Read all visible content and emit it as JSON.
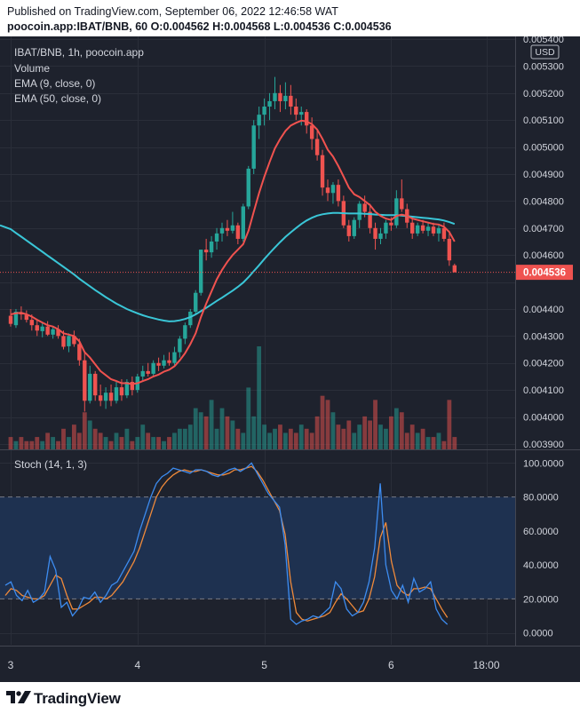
{
  "header": {
    "line1": "Published on TradingView.com, September 06, 2022 12:46:58 WAT",
    "line2": "poocoin.app:IBAT/BNB, 60  O:0.004562  H:0.004568  L:0.004536  C:0.004536"
  },
  "legend": {
    "title": "IBAT/BNB, 1h, poocoin.app",
    "volume": "Volume",
    "ema9": "EMA (9, close, 0)",
    "ema50": "EMA (50, close, 0)",
    "stoch": "Stoch (14, 1, 3)"
  },
  "currency": "USD",
  "last_price_label": "0.004536",
  "footer": {
    "brand": "TradingView"
  },
  "colors": {
    "bull": "#26a69a",
    "bear": "#ef5350",
    "ema9": "#f0524f",
    "ema50": "#3ac6d7",
    "stoch_k": "#3d8cf0",
    "stoch_d": "#f08a3a",
    "background": "#1e222d"
  },
  "chart_data": [
    {
      "type": "candlestick",
      "title": "IBAT/BNB, 1h, poocoin.app",
      "ylabel": "USD",
      "ylim": [
        0.00388,
        0.00541
      ],
      "y_ticks": [
        "0.005400",
        "0.005300",
        "0.005200",
        "0.005100",
        "0.005000",
        "0.004900",
        "0.004800",
        "0.004700",
        "0.004600",
        "0.004500",
        "0.004400",
        "0.004300",
        "0.004200",
        "0.004100",
        "0.004000",
        "0.003900"
      ],
      "x_ticks": [
        "3",
        "4",
        "5",
        "6",
        "18:00"
      ],
      "x_tick_positions": [
        0,
        24,
        48,
        72,
        90
      ],
      "last_close": 0.004536,
      "candles": [
        {
          "o": 0.004375,
          "h": 0.0044,
          "l": 0.004335,
          "c": 0.004345
        },
        {
          "o": 0.00434,
          "h": 0.0044,
          "l": 0.00433,
          "c": 0.00439
        },
        {
          "o": 0.004385,
          "h": 0.00441,
          "l": 0.00436,
          "c": 0.00438
        },
        {
          "o": 0.004378,
          "h": 0.004395,
          "l": 0.00435,
          "c": 0.00436
        },
        {
          "o": 0.00436,
          "h": 0.00438,
          "l": 0.00432,
          "c": 0.00434
        },
        {
          "o": 0.00434,
          "h": 0.00436,
          "l": 0.0043,
          "c": 0.00432
        },
        {
          "o": 0.004318,
          "h": 0.00435,
          "l": 0.004295,
          "c": 0.004335
        },
        {
          "o": 0.004335,
          "h": 0.004355,
          "l": 0.0043,
          "c": 0.004305
        },
        {
          "o": 0.004305,
          "h": 0.004335,
          "l": 0.00429,
          "c": 0.004325
        },
        {
          "o": 0.004325,
          "h": 0.00434,
          "l": 0.00429,
          "c": 0.0043
        },
        {
          "o": 0.0043,
          "h": 0.00432,
          "l": 0.00425,
          "c": 0.00426
        },
        {
          "o": 0.004262,
          "h": 0.00431,
          "l": 0.00424,
          "c": 0.0043
        },
        {
          "o": 0.0043,
          "h": 0.00432,
          "l": 0.00426,
          "c": 0.00427
        },
        {
          "o": 0.00427,
          "h": 0.00429,
          "l": 0.00419,
          "c": 0.00421
        },
        {
          "o": 0.00421,
          "h": 0.00424,
          "l": 0.00402,
          "c": 0.00406
        },
        {
          "o": 0.00406,
          "h": 0.00419,
          "l": 0.00405,
          "c": 0.00416
        },
        {
          "o": 0.00416,
          "h": 0.00417,
          "l": 0.00406,
          "c": 0.00408
        },
        {
          "o": 0.00408,
          "h": 0.00412,
          "l": 0.00404,
          "c": 0.00406
        },
        {
          "o": 0.00406,
          "h": 0.00411,
          "l": 0.00403,
          "c": 0.00409
        },
        {
          "o": 0.00409,
          "h": 0.00412,
          "l": 0.00404,
          "c": 0.00406
        },
        {
          "o": 0.00406,
          "h": 0.00413,
          "l": 0.00405,
          "c": 0.00411
        },
        {
          "o": 0.00411,
          "h": 0.00414,
          "l": 0.00406,
          "c": 0.00408
        },
        {
          "o": 0.00408,
          "h": 0.00414,
          "l": 0.00407,
          "c": 0.00413
        },
        {
          "o": 0.00413,
          "h": 0.00415,
          "l": 0.00408,
          "c": 0.0041
        },
        {
          "o": 0.0041,
          "h": 0.00416,
          "l": 0.00409,
          "c": 0.00415
        },
        {
          "o": 0.00415,
          "h": 0.00419,
          "l": 0.00413,
          "c": 0.00417
        },
        {
          "o": 0.00417,
          "h": 0.0042,
          "l": 0.00415,
          "c": 0.00416
        },
        {
          "o": 0.00416,
          "h": 0.00421,
          "l": 0.00415,
          "c": 0.0042
        },
        {
          "o": 0.0042,
          "h": 0.00422,
          "l": 0.00417,
          "c": 0.00419
        },
        {
          "o": 0.00419,
          "h": 0.00423,
          "l": 0.00418,
          "c": 0.00421
        },
        {
          "o": 0.00421,
          "h": 0.00424,
          "l": 0.00419,
          "c": 0.0042
        },
        {
          "o": 0.0042,
          "h": 0.00426,
          "l": 0.00419,
          "c": 0.00424
        },
        {
          "o": 0.00424,
          "h": 0.0043,
          "l": 0.00422,
          "c": 0.00429
        },
        {
          "o": 0.00429,
          "h": 0.00435,
          "l": 0.00427,
          "c": 0.00434
        },
        {
          "o": 0.00434,
          "h": 0.0044,
          "l": 0.00433,
          "c": 0.00439
        },
        {
          "o": 0.00439,
          "h": 0.00447,
          "l": 0.00438,
          "c": 0.00446
        },
        {
          "o": 0.00446,
          "h": 0.00462,
          "l": 0.00445,
          "c": 0.00462
        },
        {
          "o": 0.00462,
          "h": 0.00466,
          "l": 0.00458,
          "c": 0.00461
        },
        {
          "o": 0.00461,
          "h": 0.00467,
          "l": 0.00459,
          "c": 0.00465
        },
        {
          "o": 0.00465,
          "h": 0.0047,
          "l": 0.00462,
          "c": 0.00468
        },
        {
          "o": 0.00468,
          "h": 0.00472,
          "l": 0.00465,
          "c": 0.0047
        },
        {
          "o": 0.0047,
          "h": 0.00473,
          "l": 0.00467,
          "c": 0.00469
        },
        {
          "o": 0.00469,
          "h": 0.00476,
          "l": 0.00468,
          "c": 0.00471
        },
        {
          "o": 0.00471,
          "h": 0.00472,
          "l": 0.00464,
          "c": 0.00466
        },
        {
          "o": 0.00466,
          "h": 0.00479,
          "l": 0.00465,
          "c": 0.00478
        },
        {
          "o": 0.00478,
          "h": 0.00493,
          "l": 0.00477,
          "c": 0.00492
        },
        {
          "o": 0.00492,
          "h": 0.0051,
          "l": 0.0049,
          "c": 0.00508
        },
        {
          "o": 0.00508,
          "h": 0.00515,
          "l": 0.00503,
          "c": 0.00512
        },
        {
          "o": 0.00512,
          "h": 0.00518,
          "l": 0.00508,
          "c": 0.00515
        },
        {
          "o": 0.00515,
          "h": 0.0052,
          "l": 0.0051,
          "c": 0.00517
        },
        {
          "o": 0.00517,
          "h": 0.00526,
          "l": 0.00514,
          "c": 0.0052
        },
        {
          "o": 0.0052,
          "h": 0.00523,
          "l": 0.00513,
          "c": 0.00517
        },
        {
          "o": 0.00517,
          "h": 0.00524,
          "l": 0.00514,
          "c": 0.00519
        },
        {
          "o": 0.00519,
          "h": 0.00523,
          "l": 0.00512,
          "c": 0.00515
        },
        {
          "o": 0.00515,
          "h": 0.00518,
          "l": 0.0051,
          "c": 0.00512
        },
        {
          "o": 0.00512,
          "h": 0.00515,
          "l": 0.00508,
          "c": 0.00513
        },
        {
          "o": 0.00513,
          "h": 0.00514,
          "l": 0.00505,
          "c": 0.00508
        },
        {
          "o": 0.00508,
          "h": 0.00511,
          "l": 0.00499,
          "c": 0.00503
        },
        {
          "o": 0.00503,
          "h": 0.00506,
          "l": 0.00495,
          "c": 0.00497
        },
        {
          "o": 0.00497,
          "h": 0.00499,
          "l": 0.00482,
          "c": 0.00485
        },
        {
          "o": 0.00485,
          "h": 0.00488,
          "l": 0.0048,
          "c": 0.00483
        },
        {
          "o": 0.00483,
          "h": 0.00487,
          "l": 0.00479,
          "c": 0.00486
        },
        {
          "o": 0.00486,
          "h": 0.00488,
          "l": 0.00478,
          "c": 0.0048
        },
        {
          "o": 0.0048,
          "h": 0.00482,
          "l": 0.0047,
          "c": 0.00471
        },
        {
          "o": 0.00471,
          "h": 0.00473,
          "l": 0.00465,
          "c": 0.00467
        },
        {
          "o": 0.00467,
          "h": 0.00474,
          "l": 0.00466,
          "c": 0.00473
        },
        {
          "o": 0.00473,
          "h": 0.0048,
          "l": 0.0047,
          "c": 0.00479
        },
        {
          "o": 0.00479,
          "h": 0.00482,
          "l": 0.00474,
          "c": 0.00476
        },
        {
          "o": 0.00476,
          "h": 0.00479,
          "l": 0.00468,
          "c": 0.0047
        },
        {
          "o": 0.0047,
          "h": 0.00472,
          "l": 0.00462,
          "c": 0.00466
        },
        {
          "o": 0.00466,
          "h": 0.0047,
          "l": 0.00464,
          "c": 0.00468
        },
        {
          "o": 0.00468,
          "h": 0.00473,
          "l": 0.00466,
          "c": 0.00472
        },
        {
          "o": 0.00472,
          "h": 0.00474,
          "l": 0.00469,
          "c": 0.00471
        },
        {
          "o": 0.00471,
          "h": 0.00484,
          "l": 0.0047,
          "c": 0.00481
        },
        {
          "o": 0.00481,
          "h": 0.00488,
          "l": 0.00476,
          "c": 0.00477
        },
        {
          "o": 0.00477,
          "h": 0.00479,
          "l": 0.0047,
          "c": 0.00472
        },
        {
          "o": 0.00472,
          "h": 0.00474,
          "l": 0.00466,
          "c": 0.00468
        },
        {
          "o": 0.00468,
          "h": 0.00472,
          "l": 0.00467,
          "c": 0.00471
        },
        {
          "o": 0.00471,
          "h": 0.00473,
          "l": 0.00468,
          "c": 0.00469
        },
        {
          "o": 0.00469,
          "h": 0.00472,
          "l": 0.00467,
          "c": 0.004705
        },
        {
          "o": 0.004705,
          "h": 0.00472,
          "l": 0.00467,
          "c": 0.00468
        },
        {
          "o": 0.00468,
          "h": 0.00471,
          "l": 0.00465,
          "c": 0.0047
        },
        {
          "o": 0.0047,
          "h": 0.00472,
          "l": 0.00465,
          "c": 0.00466
        },
        {
          "o": 0.00466,
          "h": 0.00469,
          "l": 0.00456,
          "c": 0.00458
        },
        {
          "o": 0.004562,
          "h": 0.004568,
          "l": 0.004536,
          "c": 0.004536
        }
      ],
      "volume": [
        3,
        2,
        3,
        2,
        2,
        3,
        2,
        4,
        3,
        2,
        5,
        3,
        6,
        4,
        9,
        7,
        5,
        4,
        3,
        2,
        4,
        3,
        5,
        2,
        3,
        6,
        4,
        3,
        3,
        2,
        3,
        4,
        5,
        5,
        6,
        10,
        9,
        8,
        12,
        5,
        10,
        8,
        7,
        5,
        4,
        15,
        8,
        25,
        6,
        4,
        5,
        6,
        4,
        5,
        4,
        6,
        5,
        4,
        8,
        13,
        12,
        9,
        6,
        5,
        7,
        4,
        6,
        8,
        7,
        12,
        6,
        5,
        8,
        10,
        9,
        4,
        6,
        4,
        5,
        3,
        3,
        4,
        2,
        12,
        3
      ],
      "ema9": [
        0.00438,
        0.004384,
        0.004386,
        0.00438,
        0.004372,
        0.00436,
        0.00435,
        0.00434,
        0.004335,
        0.004325,
        0.00431,
        0.004305,
        0.0043,
        0.00428,
        0.00424,
        0.00422,
        0.004195,
        0.00417,
        0.004155,
        0.00414,
        0.004133,
        0.004125,
        0.004125,
        0.004122,
        0.004125,
        0.004133,
        0.00414,
        0.00415,
        0.004157,
        0.004168,
        0.004175,
        0.004188,
        0.00421,
        0.004236,
        0.00427,
        0.00431,
        0.00437,
        0.00442,
        0.004465,
        0.00451,
        0.004545,
        0.004575,
        0.0046,
        0.00462,
        0.00464,
        0.00469,
        0.00476,
        0.00483,
        0.00489,
        0.004945,
        0.004995,
        0.00503,
        0.00506,
        0.00508,
        0.00509,
        0.005098,
        0.005095,
        0.005085,
        0.005065,
        0.00503,
        0.00499,
        0.004965,
        0.00493,
        0.00489,
        0.00485,
        0.004825,
        0.004815,
        0.0048,
        0.004785,
        0.00476,
        0.004745,
        0.004735,
        0.00473,
        0.004745,
        0.00475,
        0.004745,
        0.004735,
        0.00473,
        0.004725,
        0.00472,
        0.004715,
        0.004713,
        0.004705,
        0.004685,
        0.00465
      ],
      "ema50": [
        0.00471,
        0.004696,
        0.004682,
        0.004668,
        0.004654,
        0.00464,
        0.004626,
        0.004612,
        0.004598,
        0.004584,
        0.00457,
        0.004556,
        0.004542,
        0.004528,
        0.004512,
        0.004498,
        0.004484,
        0.00447,
        0.004457,
        0.004444,
        0.004432,
        0.00442,
        0.00441,
        0.0044,
        0.004392,
        0.004384,
        0.004377,
        0.004371,
        0.004366,
        0.004361,
        0.004357,
        0.004354,
        0.004355,
        0.004358,
        0.004363,
        0.00437,
        0.00438,
        0.004392,
        0.004404,
        0.004417,
        0.00443,
        0.004442,
        0.004455,
        0.004468,
        0.004482,
        0.004498,
        0.004518,
        0.00454,
        0.004562,
        0.004585,
        0.004607,
        0.004628,
        0.004648,
        0.004667,
        0.004684,
        0.0047,
        0.004715,
        0.004728,
        0.004738,
        0.004746,
        0.004751,
        0.004754,
        0.004756,
        0.004756,
        0.004755,
        0.004754,
        0.004754,
        0.004754,
        0.004753,
        0.004752,
        0.00475,
        0.004749,
        0.004748,
        0.004748,
        0.004748,
        0.004746,
        0.004744,
        0.004742,
        0.00474,
        0.004738,
        0.004736,
        0.004734,
        0.004732,
        0.004728,
        0.004722,
        0.004715
      ]
    },
    {
      "type": "line",
      "title": "Stoch (14, 1, 3)",
      "ylim": [
        -7,
        107
      ],
      "y_ticks": [
        "100.0000",
        "80.0000",
        "60.0000",
        "40.0000",
        "20.0000",
        "0.0000"
      ],
      "bands": [
        20,
        80
      ],
      "series": [
        {
          "values": [
            28,
            30,
            22,
            19,
            25,
            18,
            20,
            24,
            45,
            37,
            15,
            18,
            10,
            14,
            21,
            20,
            24,
            18,
            22,
            28,
            30,
            36,
            42,
            48,
            60,
            70,
            80,
            88,
            92,
            94,
            97,
            96,
            95,
            94,
            96,
            96,
            95,
            93,
            92,
            94,
            96,
            97,
            95,
            97,
            100,
            94,
            88,
            82,
            78,
            74,
            52,
            8,
            5,
            7,
            8,
            10,
            9,
            12,
            15,
            30,
            26,
            14,
            10,
            12,
            18,
            30,
            50,
            88,
            40,
            25,
            20,
            28,
            18,
            32,
            24,
            26,
            30,
            14,
            8,
            5
          ]
        },
        {
          "values": [
            22,
            26,
            25,
            22,
            21,
            20,
            20,
            22,
            28,
            34,
            32,
            22,
            14,
            14,
            16,
            18,
            21,
            21,
            20,
            22,
            26,
            30,
            36,
            42,
            50,
            60,
            70,
            80,
            86,
            90,
            93,
            95,
            96,
            95,
            95,
            96,
            95,
            94,
            93,
            93,
            94,
            96,
            96,
            97,
            98,
            95,
            90,
            84,
            78,
            72,
            58,
            30,
            12,
            8,
            7,
            8,
            9,
            10,
            12,
            18,
            23,
            20,
            16,
            12,
            13,
            20,
            33,
            56,
            65,
            42,
            28,
            24,
            22,
            26,
            26,
            27,
            26,
            20,
            14,
            9
          ]
        }
      ]
    }
  ]
}
